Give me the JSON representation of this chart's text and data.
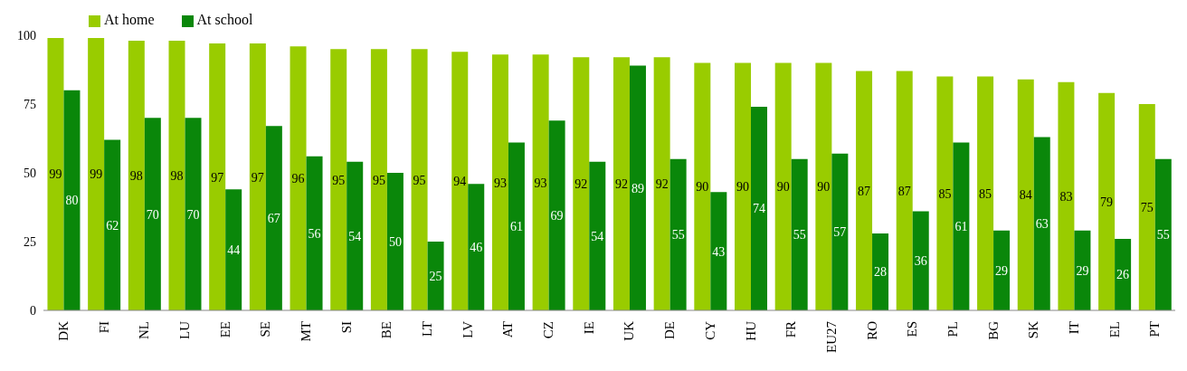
{
  "chart_data": {
    "type": "bar",
    "categories": [
      "DK",
      "FI",
      "NL",
      "LU",
      "EE",
      "SE",
      "MT",
      "SI",
      "BE",
      "LT",
      "LV",
      "AT",
      "CZ",
      "IE",
      "UK",
      "DE",
      "CY",
      "HU",
      "FR",
      "EU27",
      "RO",
      "ES",
      "PL",
      "BG",
      "SK",
      "IT",
      "EL",
      "PT"
    ],
    "series": [
      {
        "name": "At home",
        "color": "#99cc00",
        "values": [
          99,
          99,
          98,
          98,
          97,
          97,
          96,
          95,
          95,
          95,
          94,
          93,
          93,
          92,
          92,
          92,
          90,
          90,
          90,
          90,
          87,
          87,
          85,
          85,
          84,
          83,
          79,
          75
        ]
      },
      {
        "name": "At school",
        "color": "#0a870a",
        "values": [
          80,
          62,
          70,
          70,
          44,
          67,
          56,
          54,
          50,
          25,
          46,
          61,
          69,
          54,
          89,
          55,
          43,
          74,
          55,
          57,
          28,
          36,
          61,
          29,
          63,
          29,
          26,
          55
        ]
      }
    ],
    "ylim": [
      0,
      100
    ],
    "yticks": [
      0,
      25,
      50,
      75,
      100
    ],
    "grid": false,
    "legend": "top left",
    "data_labels": true
  }
}
